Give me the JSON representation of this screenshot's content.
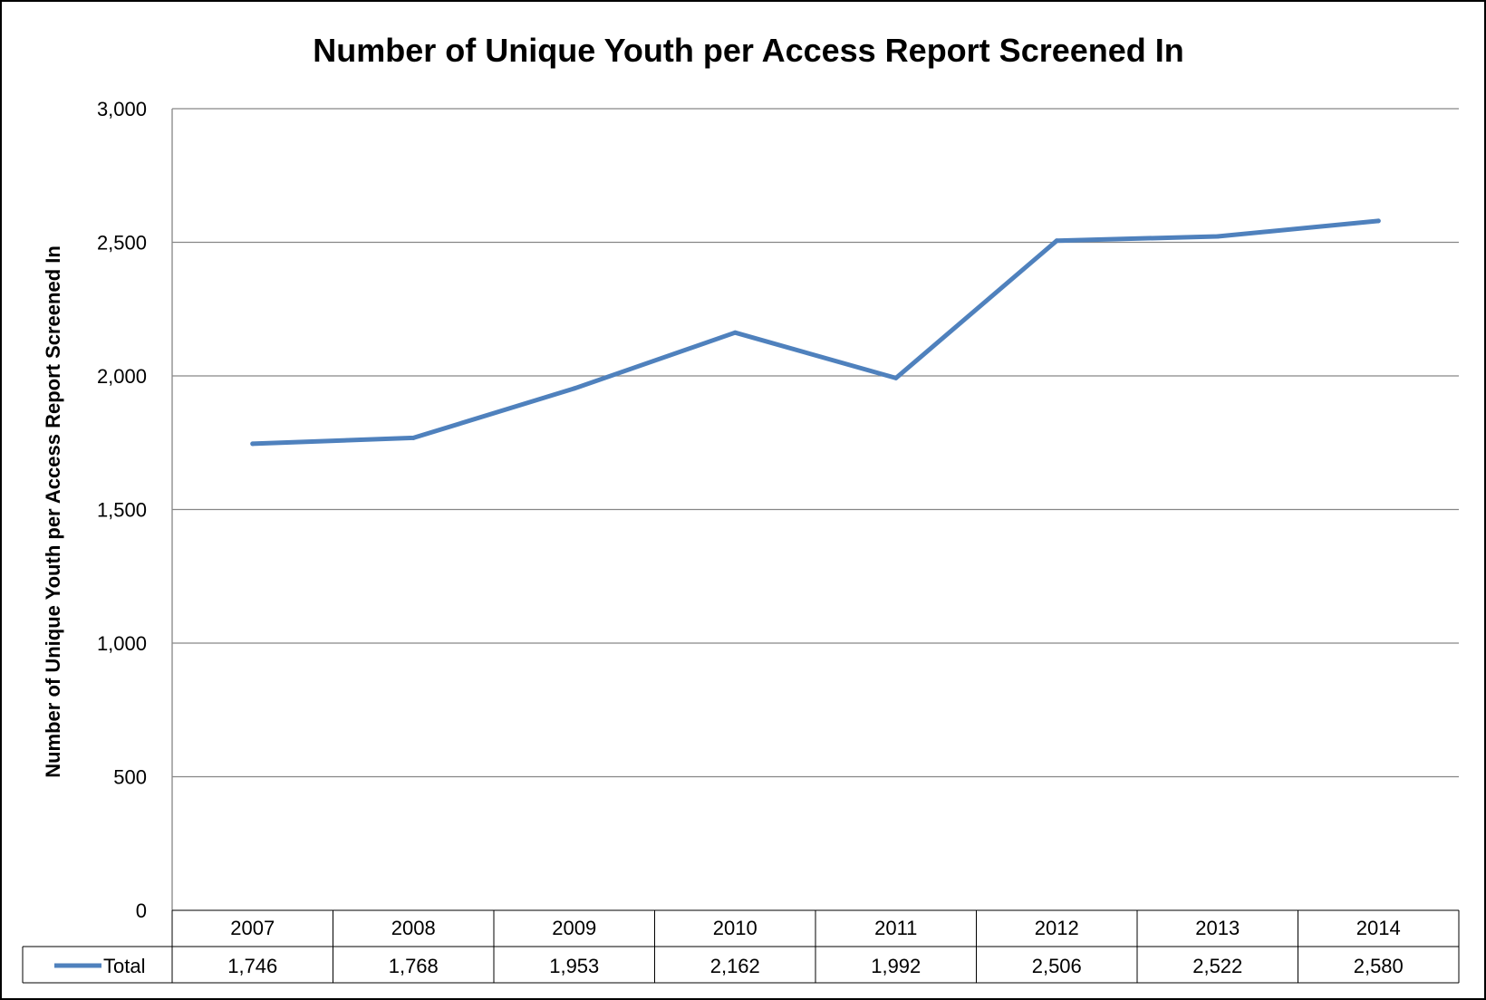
{
  "chart_data": {
    "type": "line",
    "title": "Number of Unique Youth per Access Report Screened In",
    "xlabel": "",
    "ylabel": "Number of Unique Youth per Access Report Screened In",
    "ylim": [
      0,
      3000
    ],
    "yticks": [
      0,
      500,
      1000,
      1500,
      2000,
      2500,
      3000
    ],
    "ytick_labels": [
      "0",
      "500",
      "1,000",
      "1,500",
      "2,000",
      "2,500",
      "3,000"
    ],
    "grid": true,
    "legend": "data-table",
    "categories": [
      "2007",
      "2008",
      "2009",
      "2010",
      "2011",
      "2012",
      "2013",
      "2014"
    ],
    "series": [
      {
        "name": "Total",
        "color": "#4f81bd",
        "values": [
          1746,
          1768,
          1953,
          2162,
          1992,
          2506,
          2522,
          2580
        ],
        "value_labels": [
          "1,746",
          "1,768",
          "1,953",
          "2,162",
          "1,992",
          "2,506",
          "2,522",
          "2,580"
        ]
      }
    ]
  }
}
